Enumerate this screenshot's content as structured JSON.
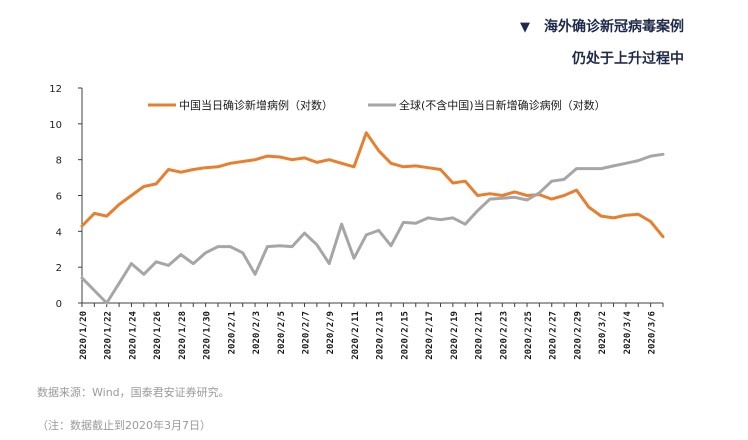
{
  "header": {
    "line1": "海外确诊新冠病毒案例",
    "line2": "仍处于上升过程中",
    "marker_icon": "triangle-down-icon"
  },
  "footer": {
    "source": "数据来源：Wind，国泰君安证券研究。",
    "note": "（注：数据截止到2020年3月7日）"
  },
  "colors": {
    "china": "#e97f2e",
    "global": "#a6a6a6",
    "header": "#1f2a4a"
  },
  "chart_data": {
    "type": "line",
    "title": "",
    "xlabel": "",
    "ylabel": "",
    "ylim": [
      0,
      12
    ],
    "yticks": [
      0,
      2,
      4,
      6,
      8,
      10,
      12
    ],
    "grid": false,
    "legend_position": "top",
    "x": [
      "2020/1/20",
      "2020/1/21",
      "2020/1/22",
      "2020/1/23",
      "2020/1/24",
      "2020/1/25",
      "2020/1/26",
      "2020/1/27",
      "2020/1/28",
      "2020/1/29",
      "2020/1/30",
      "2020/1/31",
      "2020/2/1",
      "2020/2/2",
      "2020/2/3",
      "2020/2/4",
      "2020/2/5",
      "2020/2/6",
      "2020/2/7",
      "2020/2/8",
      "2020/2/9",
      "2020/2/10",
      "2020/2/11",
      "2020/2/12",
      "2020/2/13",
      "2020/2/14",
      "2020/2/15",
      "2020/2/16",
      "2020/2/17",
      "2020/2/18",
      "2020/2/19",
      "2020/2/20",
      "2020/2/21",
      "2020/2/22",
      "2020/2/23",
      "2020/2/24",
      "2020/2/25",
      "2020/2/26",
      "2020/2/27",
      "2020/2/28",
      "2020/2/29",
      "2020/3/1",
      "2020/3/2",
      "2020/3/3",
      "2020/3/4",
      "2020/3/5",
      "2020/3/6",
      "2020/3/7"
    ],
    "x_tick_labels": [
      "2020/1/20",
      "2020/1/22",
      "2020/1/24",
      "2020/1/26",
      "2020/1/28",
      "2020/1/30",
      "2020/2/1",
      "2020/2/3",
      "2020/2/5",
      "2020/2/7",
      "2020/2/9",
      "2020/2/11",
      "2020/2/13",
      "2020/2/15",
      "2020/2/17",
      "2020/2/19",
      "2020/2/21",
      "2020/2/23",
      "2020/2/25",
      "2020/2/27",
      "2020/2/29",
      "2020/3/2",
      "2020/3/4",
      "2020/3/6"
    ],
    "series": [
      {
        "name": "中国当日确诊新增病例（对数）",
        "values": [
          4.3,
          5.0,
          4.85,
          5.5,
          6.0,
          6.5,
          6.65,
          7.45,
          7.3,
          7.45,
          7.55,
          7.6,
          7.8,
          7.9,
          8.0,
          8.2,
          8.15,
          8.0,
          8.1,
          7.85,
          8.0,
          7.8,
          7.6,
          9.5,
          8.5,
          7.8,
          7.6,
          7.65,
          7.55,
          7.45,
          6.7,
          6.8,
          6.0,
          6.1,
          6.0,
          6.2,
          6.0,
          6.05,
          5.8,
          6.0,
          6.3,
          5.35,
          4.85,
          4.75,
          4.9,
          4.95,
          4.55,
          3.7
        ]
      },
      {
        "name": "全球(不含中国)当日新增确诊病例（对数）",
        "values": [
          1.4,
          0.7,
          0.0,
          1.1,
          2.2,
          1.6,
          2.3,
          2.1,
          2.7,
          2.2,
          2.8,
          3.15,
          3.15,
          2.8,
          1.6,
          3.15,
          3.2,
          3.15,
          3.9,
          3.25,
          2.2,
          4.4,
          2.5,
          3.8,
          4.05,
          3.2,
          4.5,
          4.45,
          4.75,
          4.65,
          4.75,
          4.4,
          5.15,
          5.8,
          5.85,
          5.9,
          5.75,
          6.15,
          6.8,
          6.9,
          7.5,
          7.5,
          7.5,
          7.65,
          7.8,
          7.95,
          8.2,
          8.3
        ]
      }
    ]
  }
}
